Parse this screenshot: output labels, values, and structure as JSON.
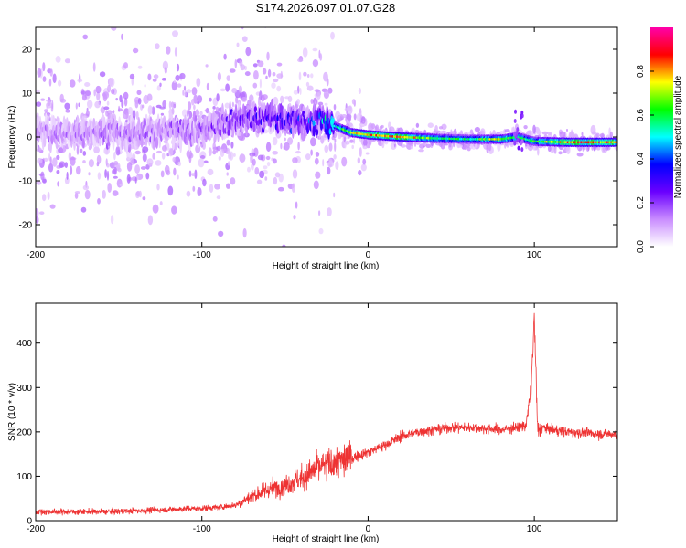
{
  "chart_data": [
    {
      "type": "heatmap",
      "title": "S174.2026.097.01.07.G28",
      "xlabel": "Height of straight line (km)",
      "ylabel": "Frequency (Hz)",
      "xlim": [
        -200,
        150
      ],
      "ylim": [
        -25,
        25
      ],
      "xticks": [
        -200,
        -100,
        0,
        100
      ],
      "yticks": [
        -20,
        -10,
        0,
        10,
        20
      ],
      "colorbar": {
        "label": "Normalized spectral amplitude",
        "range": [
          0,
          1
        ],
        "ticks": [
          0.0,
          0.2,
          0.4,
          0.6,
          0.8
        ],
        "tick_labels": [
          "0.0",
          "0.2",
          "0.4",
          "0.6",
          "0.8"
        ],
        "colors": [
          "#ffffff",
          "#c98cff",
          "#6a00ff",
          "#0000ff",
          "#00ffff",
          "#00ff00",
          "#ffff00",
          "#ff0000",
          "#ff00aa"
        ]
      },
      "ridge": [
        {
          "x": -200,
          "f": 1.0,
          "amp": 0.12
        },
        {
          "x": -150,
          "f": 1.0,
          "amp": 0.14
        },
        {
          "x": -100,
          "f": 1.5,
          "amp": 0.16
        },
        {
          "x": -80,
          "f": 4.0,
          "amp": 0.22
        },
        {
          "x": -60,
          "f": 4.5,
          "amp": 0.26
        },
        {
          "x": -40,
          "f": 3.5,
          "amp": 0.3
        },
        {
          "x": -30,
          "f": 4.0,
          "amp": 0.34
        },
        {
          "x": -20,
          "f": 2.5,
          "amp": 0.5
        },
        {
          "x": -10,
          "f": 1.0,
          "amp": 0.7
        },
        {
          "x": 0,
          "f": 0.5,
          "amp": 0.8
        },
        {
          "x": 20,
          "f": 0.0,
          "amp": 0.85
        },
        {
          "x": 40,
          "f": -0.3,
          "amp": 0.6
        },
        {
          "x": 60,
          "f": -0.5,
          "amp": 0.55
        },
        {
          "x": 80,
          "f": -0.5,
          "amp": 0.7
        },
        {
          "x": 90,
          "f": 0.0,
          "amp": 0.6
        },
        {
          "x": 100,
          "f": -1.0,
          "amp": 0.6
        },
        {
          "x": 120,
          "f": -1.2,
          "amp": 0.8
        },
        {
          "x": 150,
          "f": -1.2,
          "amp": 0.8
        }
      ]
    },
    {
      "type": "line",
      "xlabel": "Height of straight line (km)",
      "ylabel": "SNR (10 * v/v)",
      "xlim": [
        -200,
        150
      ],
      "ylim": [
        0,
        490
      ],
      "xticks": [
        -200,
        -100,
        0,
        100
      ],
      "yticks": [
        0,
        100,
        200,
        300,
        400
      ],
      "series": [
        {
          "name": "SNR",
          "color": "#ee3333",
          "x": [
            -200,
            -180,
            -160,
            -140,
            -120,
            -100,
            -90,
            -80,
            -75,
            -70,
            -60,
            -50,
            -40,
            -30,
            -20,
            -10,
            0,
            10,
            20,
            30,
            40,
            50,
            60,
            70,
            80,
            90,
            95,
            98,
            100,
            102,
            105,
            110,
            120,
            130,
            140,
            150
          ],
          "y": [
            20,
            20,
            20,
            22,
            25,
            28,
            30,
            35,
            45,
            55,
            70,
            80,
            95,
            120,
            130,
            140,
            155,
            170,
            190,
            200,
            205,
            210,
            210,
            208,
            205,
            210,
            215,
            290,
            460,
            200,
            210,
            205,
            200,
            198,
            195,
            195
          ]
        }
      ]
    }
  ]
}
